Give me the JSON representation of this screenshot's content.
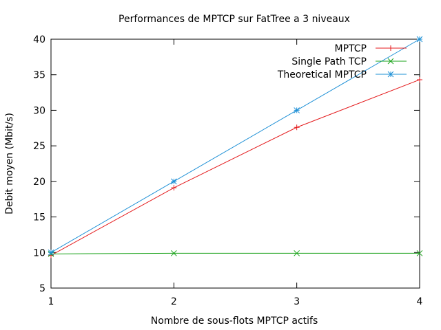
{
  "chart_data": {
    "type": "line",
    "title": "Performances de MPTCP sur FatTree a 3 niveaux",
    "xlabel": "Nombre de sous-flots MPTCP actifs",
    "ylabel": "Debit moyen (Mbit/s)",
    "x": [
      1,
      2,
      3,
      4
    ],
    "xlim": [
      1,
      4
    ],
    "ylim": [
      5,
      40
    ],
    "xticks": [
      "1",
      "2",
      "3",
      "4"
    ],
    "yticks": [
      "5",
      "10",
      "15",
      "20",
      "25",
      "30",
      "35",
      "40"
    ],
    "grid": false,
    "legend_position": "top-right",
    "series": [
      {
        "name": "MPTCP",
        "values": [
          9.6,
          19.1,
          27.6,
          34.3
        ],
        "color": "#e41a1c",
        "marker": "plus"
      },
      {
        "name": "Single Path TCP",
        "values": [
          9.8,
          9.9,
          9.9,
          9.9
        ],
        "color": "#1aa31a",
        "marker": "cross"
      },
      {
        "name": "Theoretical MPTCP",
        "values": [
          10,
          20,
          30,
          40
        ],
        "color": "#1e90d6",
        "marker": "star"
      }
    ]
  }
}
